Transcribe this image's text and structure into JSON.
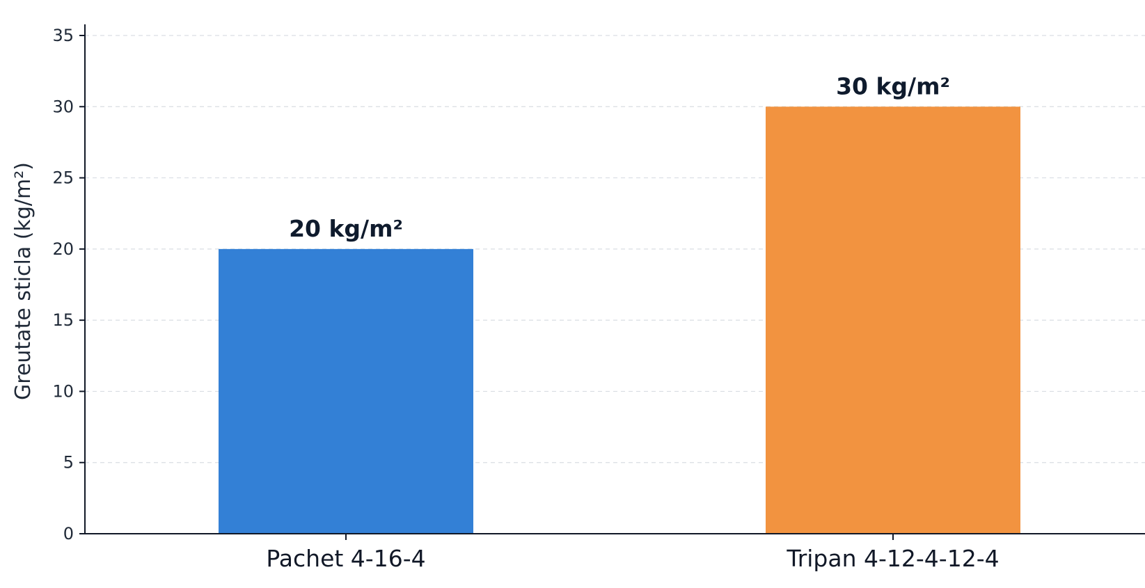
{
  "chart_data": {
    "type": "bar",
    "title": "",
    "xlabel": "",
    "ylabel": "Greutate sticla (kg/m²)",
    "categories": [
      "Pachet 4-16-4",
      "Tripan 4-12-4-12-4"
    ],
    "values": [
      20,
      30
    ],
    "data_labels": [
      "20 kg/m²",
      "30 kg/m²"
    ],
    "colors": [
      "#3380d6",
      "#f29340"
    ],
    "ylim": [
      0,
      35
    ],
    "yticks": [
      0,
      5,
      10,
      15,
      20,
      25,
      30,
      35
    ],
    "grid": "horizontal dashed",
    "legend": "none"
  }
}
